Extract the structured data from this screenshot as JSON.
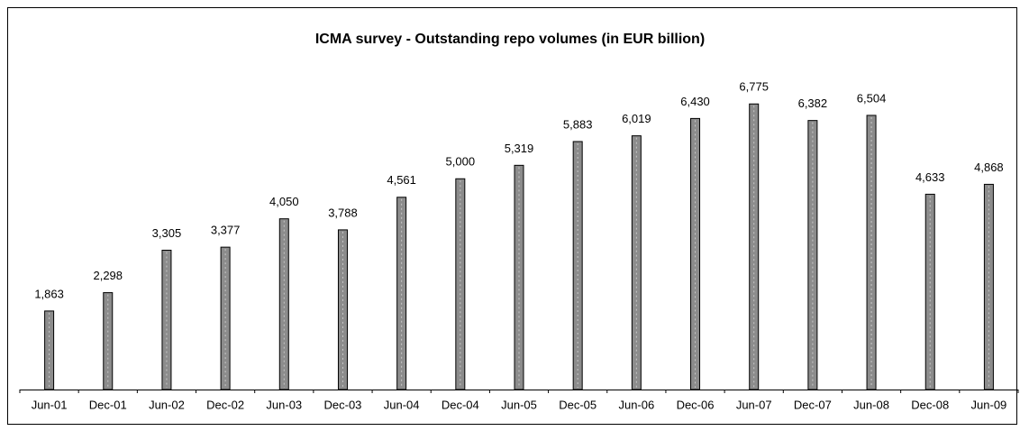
{
  "chart_data": {
    "type": "bar",
    "title": "ICMA survey  -  Outstanding repo volumes (in EUR billion)",
    "categories": [
      "Jun-01",
      "Dec-01",
      "Jun-02",
      "Dec-02",
      "Jun-03",
      "Dec-03",
      "Jun-04",
      "Dec-04",
      "Jun-05",
      "Dec-05",
      "Jun-06",
      "Dec-06",
      "Jun-07",
      "Dec-07",
      "Jun-08",
      "Dec-08",
      "Jun-09"
    ],
    "values": [
      1863,
      2298,
      3305,
      3377,
      4050,
      3788,
      4561,
      5000,
      5319,
      5883,
      6019,
      6430,
      6775,
      6382,
      6504,
      4633,
      4868
    ],
    "value_labels": [
      "1,863",
      "2,298",
      "3,305",
      "3,377",
      "4,050",
      "3,788",
      "4,561",
      "5,000",
      "5,319",
      "5,883",
      "6,019",
      "6,430",
      "6,775",
      "6,382",
      "6,504",
      "4,633",
      "4,868"
    ],
    "color": "#8c8c8c",
    "ylim": [
      0,
      8000
    ]
  }
}
